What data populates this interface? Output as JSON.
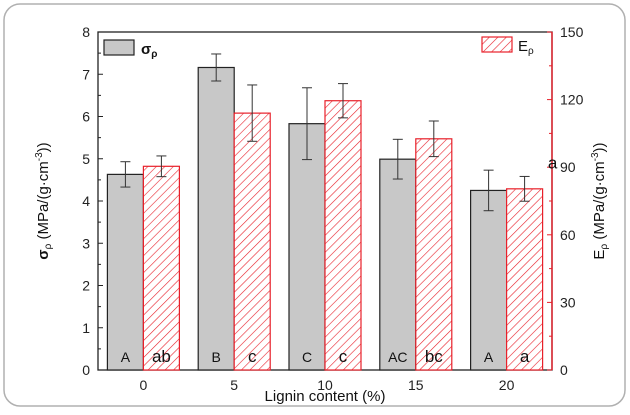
{
  "chart_data": {
    "type": "bar",
    "xlabel": "Lignin content (%)",
    "categories": [
      "0",
      "5",
      "10",
      "15",
      "20"
    ],
    "left_axis": {
      "label_symbol": "σ",
      "label_sub": "ρ",
      "label_units": "(MPa/(g·cm",
      "label_sup": "-3",
      "label_close": "))",
      "ylim": [
        0,
        8
      ],
      "ticks": [
        "0",
        "1",
        "2",
        "3",
        "4",
        "5",
        "6",
        "7",
        "8"
      ]
    },
    "right_axis": {
      "label_symbol": "E",
      "label_sub": "ρ",
      "label_units": "(MPa/(g·cm",
      "label_sup": "-3",
      "label_close": "))",
      "ylim": [
        0,
        150
      ],
      "ticks": [
        "0",
        "30",
        "60",
        "90",
        "120",
        "150"
      ],
      "color": "#e8202a"
    },
    "series": [
      {
        "name_symbol": "σ",
        "name_sub": "ρ",
        "axis": "left",
        "fill": "#c8c8c8",
        "stroke": "#222222",
        "values": [
          4.63,
          7.16,
          5.83,
          4.99,
          4.25
        ],
        "errors": [
          0.3,
          0.32,
          0.85,
          0.47,
          0.48
        ],
        "letters": [
          "A",
          "B",
          "C",
          "AC",
          "A"
        ]
      },
      {
        "name_symbol": "E",
        "name_sub": "ρ",
        "axis": "right",
        "fill": "hatch",
        "stroke": "#e8202a",
        "values": [
          90.4,
          114,
          119.5,
          102.6,
          80.4
        ],
        "errors": [
          4.6,
          12.5,
          7.6,
          7.9,
          5.5
        ],
        "letters": [
          "ab",
          "c",
          "c",
          "bc",
          "a"
        ]
      }
    ],
    "annotations": [
      "a"
    ]
  }
}
